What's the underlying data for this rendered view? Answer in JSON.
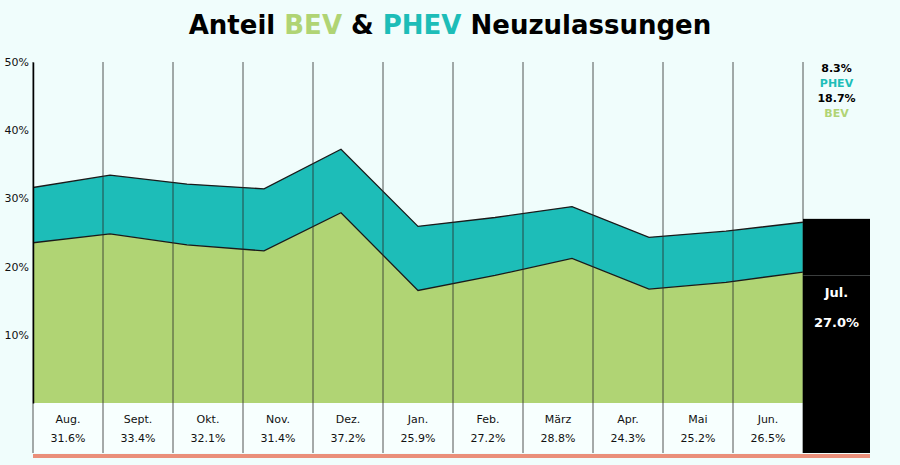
{
  "chart_data": [
    {
      "type": "area",
      "title": "Anteil BEV & PHEV Neuzulassungen",
      "categories": [
        "Aug.",
        "Sept.",
        "Okt.",
        "Nov.",
        "Dez.",
        "Jan.",
        "Feb.",
        "März",
        "Apr.",
        "Mai",
        "Jun."
      ],
      "series": [
        {
          "name": "BEV",
          "color": "#b0d474",
          "values": [
            23.5,
            24.8,
            23.2,
            22.3,
            27.9,
            16.5,
            18.7,
            21.2,
            16.7,
            17.7,
            19.2
          ]
        },
        {
          "name": "PHEV",
          "color": "#1dbdb8",
          "values": [
            8.1,
            8.6,
            8.9,
            9.1,
            9.3,
            9.4,
            8.5,
            7.6,
            7.6,
            7.5,
            7.3
          ]
        }
      ],
      "total_labels": [
        "31.6%",
        "33.4%",
        "32.1%",
        "31.4%",
        "37.2%",
        "25.9%",
        "27.2%",
        "28.8%",
        "24.3%",
        "25.2%",
        "26.5%"
      ],
      "stacked": true,
      "grid": false,
      "ylim": [
        0,
        50
      ],
      "yticks": [
        {
          "value": 10,
          "label": "10%"
        },
        {
          "value": 20,
          "label": "20%"
        },
        {
          "value": 30,
          "label": "30%"
        },
        {
          "value": 40,
          "label": "40%"
        },
        {
          "value": 50,
          "label": "50%"
        }
      ]
    },
    {
      "type": "bar",
      "categories": [
        "Jul."
      ],
      "series": [
        {
          "name": "BEV",
          "color": "#000000",
          "values": [
            18.7
          ],
          "value_labels": [
            "18.7%"
          ]
        },
        {
          "name": "PHEV",
          "color": "#000000",
          "values": [
            8.3
          ],
          "value_labels": [
            "8.3%"
          ]
        }
      ],
      "total_labels": [
        "27.0%"
      ],
      "stacked": true,
      "data_labels": true,
      "legend": "top",
      "tick_labels": "x",
      "ylim": [
        0,
        50
      ]
    }
  ]
}
